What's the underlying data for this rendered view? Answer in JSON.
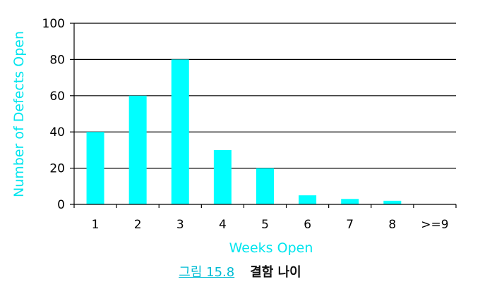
{
  "chart_data": {
    "type": "bar",
    "categories": [
      "1",
      "2",
      "3",
      "4",
      "5",
      "6",
      "7",
      "8",
      ">=9"
    ],
    "values": [
      40,
      60,
      80,
      30,
      20,
      5,
      3,
      2,
      0
    ],
    "xlabel": "Weeks Open",
    "ylabel": "Number of Defects Open",
    "ylim": [
      0,
      100
    ],
    "yticks": [
      0,
      20,
      40,
      60,
      80,
      100
    ],
    "grid": true,
    "bar_color": "#00ffff",
    "label_color": "#00e5ee"
  },
  "caption": {
    "figure_number": "그림 15.8",
    "title": "결함 나이"
  }
}
